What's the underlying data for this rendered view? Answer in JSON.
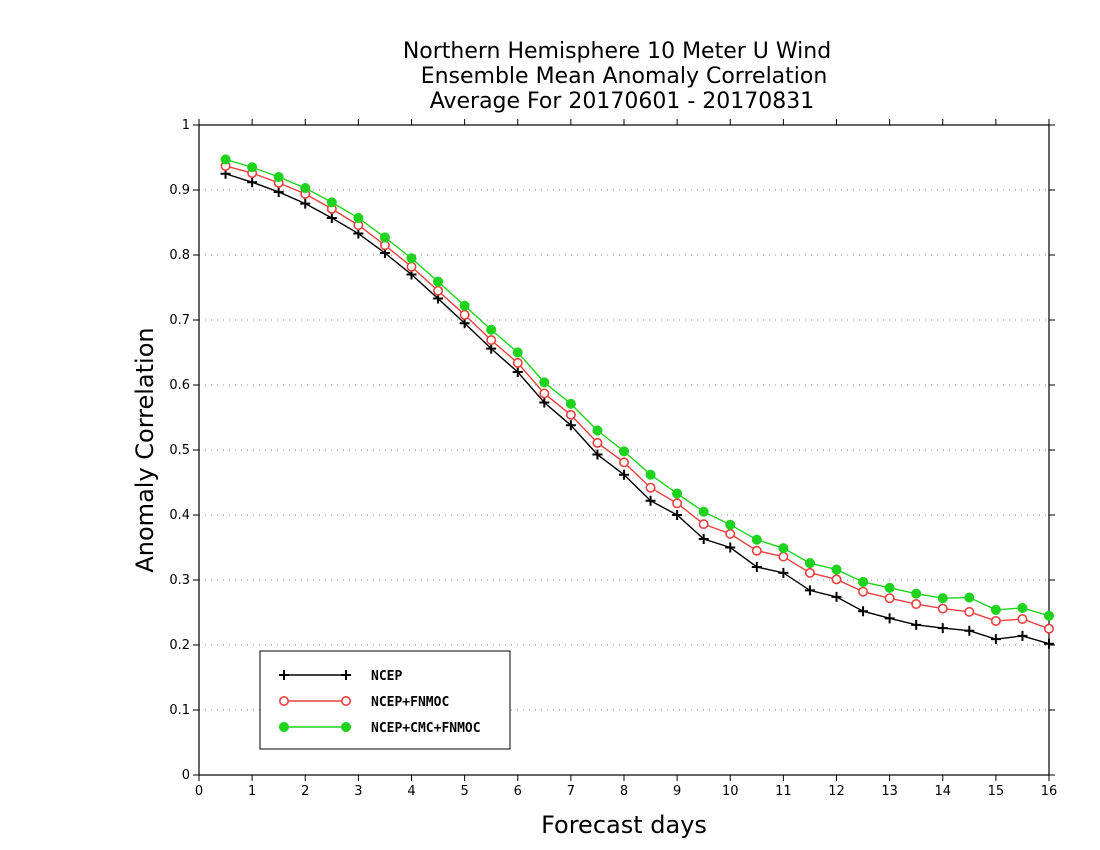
{
  "chart_data": {
    "type": "line",
    "title": [
      "Northern Hemisphere 10 Meter U Wind",
      "Ensemble Mean Anomaly Correlation",
      "Average For 20170601 - 20170831"
    ],
    "xlabel": "Forecast days",
    "ylabel": "Anomaly Correlation",
    "xlim": [
      0,
      16
    ],
    "ylim": [
      0,
      1
    ],
    "xticks": [
      0,
      1,
      2,
      3,
      4,
      5,
      6,
      7,
      8,
      9,
      10,
      11,
      12,
      13,
      14,
      15,
      16
    ],
    "yticks": [
      0,
      0.1,
      0.2,
      0.3,
      0.4,
      0.5,
      0.6,
      0.7,
      0.8,
      0.9,
      1
    ],
    "ytick_labels": [
      "0",
      "0.1",
      "0.2",
      "0.3",
      "0.4",
      "0.5",
      "0.6",
      "0.7",
      "0.8",
      "0.9",
      "1"
    ],
    "grid": "horizontal dotted",
    "legend_position": "bottom-left",
    "x": [
      0.5,
      1,
      1.5,
      2,
      2.5,
      3,
      3.5,
      4,
      4.5,
      5,
      5.5,
      6,
      6.5,
      7,
      7.5,
      8,
      8.5,
      9,
      9.5,
      10,
      10.5,
      11,
      11.5,
      12,
      12.5,
      13,
      13.5,
      14,
      14.5,
      15,
      15.5,
      16
    ],
    "series": [
      {
        "name": "NCEP",
        "color": "#000000",
        "marker": "plus",
        "values": [
          0.925,
          0.912,
          0.897,
          0.879,
          0.857,
          0.833,
          0.803,
          0.77,
          0.733,
          0.695,
          0.656,
          0.62,
          0.573,
          0.538,
          0.493,
          0.462,
          0.422,
          0.4,
          0.363,
          0.35,
          0.32,
          0.311,
          0.284,
          0.274,
          0.252,
          0.241,
          0.231,
          0.226,
          0.222,
          0.209,
          0.214,
          0.202
        ]
      },
      {
        "name": "NCEP+FNMOC",
        "color": "#e8403f",
        "marker": "open-circle",
        "values": [
          0.937,
          0.926,
          0.911,
          0.894,
          0.871,
          0.846,
          0.815,
          0.782,
          0.745,
          0.708,
          0.669,
          0.634,
          0.587,
          0.554,
          0.511,
          0.481,
          0.442,
          0.418,
          0.386,
          0.371,
          0.345,
          0.336,
          0.311,
          0.301,
          0.282,
          0.272,
          0.263,
          0.256,
          0.251,
          0.237,
          0.24,
          0.225
        ]
      },
      {
        "name": "NCEP+CMC+FNMOC",
        "color": "#1ed21e",
        "marker": "filled-circle",
        "values": [
          0.947,
          0.935,
          0.92,
          0.903,
          0.881,
          0.857,
          0.827,
          0.795,
          0.759,
          0.722,
          0.685,
          0.65,
          0.604,
          0.571,
          0.53,
          0.498,
          0.462,
          0.433,
          0.405,
          0.385,
          0.362,
          0.349,
          0.326,
          0.316,
          0.297,
          0.288,
          0.279,
          0.272,
          0.273,
          0.254,
          0.257,
          0.245
        ]
      }
    ]
  }
}
